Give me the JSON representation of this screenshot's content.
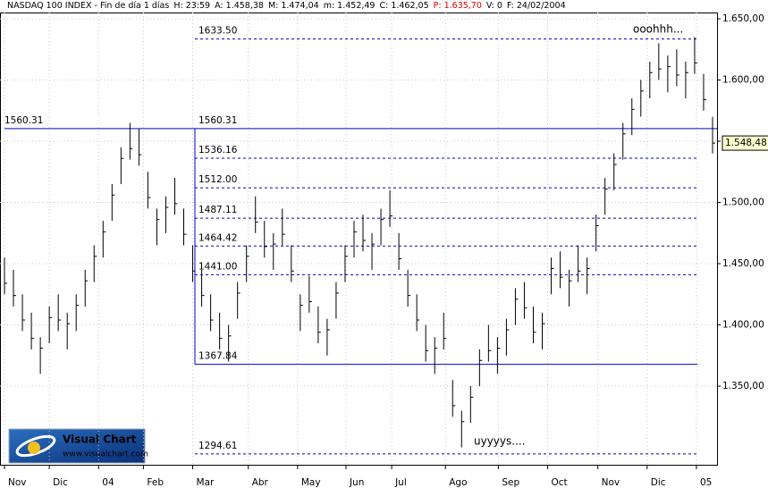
{
  "header": [
    "NASDAQ 100 INDEX - Fin de día 1 días",
    "H: 23:59",
    "A: 1.458,38",
    "M: 1.474,04",
    "m: 1.452,49",
    "C: 1.462,05",
    "P: 1.635,70",
    "V: 0",
    "F: 24/02/2004"
  ],
  "chart_data": {
    "type": "ohlc",
    "color": "#000000",
    "grid": true,
    "xlim": [
      0,
      80
    ],
    "ylim": [
      1285.8,
      1655.1
    ],
    "yticks": [
      {
        "value": 1350,
        "label": "1.350,00"
      },
      {
        "value": 1400,
        "label": "1.400,00"
      },
      {
        "value": 1450,
        "label": "1.450,00"
      },
      {
        "value": 1500,
        "label": "1.500,00"
      },
      {
        "value": 1550,
        "label": "1.550,00"
      },
      {
        "value": 1600,
        "label": "1.600,00"
      },
      {
        "value": 1650,
        "label": "1.650,00"
      }
    ],
    "xticks": [
      {
        "value": 0.5,
        "label": "Nov"
      },
      {
        "value": 5.5,
        "label": "Dic"
      },
      {
        "value": 11,
        "label": "04"
      },
      {
        "value": 16,
        "label": "Feb"
      },
      {
        "value": 21.5,
        "label": "Mar"
      },
      {
        "value": 27.7,
        "label": "Abr"
      },
      {
        "value": 33.2,
        "label": "May"
      },
      {
        "value": 38.6,
        "label": "Jun"
      },
      {
        "value": 43.7,
        "label": "Jul"
      },
      {
        "value": 49.7,
        "label": "Ago"
      },
      {
        "value": 55.6,
        "label": "Sep"
      },
      {
        "value": 61.1,
        "label": "Oct"
      },
      {
        "value": 66.7,
        "label": "Nov"
      },
      {
        "value": 72.2,
        "label": "Dic"
      },
      {
        "value": 77.7,
        "label": "05"
      }
    ],
    "high": [
      1455,
      1445,
      1425,
      1410,
      1390,
      1415,
      1425,
      1410,
      1425,
      1445,
      1465,
      1485,
      1515,
      1545,
      1565,
      1560,
      1525,
      1495,
      1505,
      1520,
      1495,
      1465,
      1445,
      1425,
      1410,
      1400,
      1435,
      1465,
      1505,
      1485,
      1475,
      1495,
      1465,
      1425,
      1440,
      1415,
      1405,
      1435,
      1465,
      1485,
      1490,
      1475,
      1495,
      1510,
      1475,
      1445,
      1425,
      1400,
      1390,
      1410,
      1355,
      1330,
      1350,
      1380,
      1400,
      1390,
      1405,
      1430,
      1435,
      1415,
      1410,
      1455,
      1460,
      1445,
      1465,
      1455,
      1490,
      1520,
      1540,
      1565,
      1585,
      1600,
      1615,
      1630,
      1620,
      1625,
      1615,
      1635,
      1605,
      1570
    ],
    "low": [
      1425,
      1415,
      1395,
      1380,
      1360,
      1385,
      1395,
      1380,
      1395,
      1415,
      1435,
      1455,
      1485,
      1515,
      1535,
      1530,
      1495,
      1465,
      1475,
      1490,
      1465,
      1435,
      1415,
      1395,
      1380,
      1370,
      1405,
      1435,
      1475,
      1455,
      1445,
      1465,
      1435,
      1395,
      1410,
      1385,
      1375,
      1405,
      1435,
      1455,
      1460,
      1445,
      1465,
      1480,
      1445,
      1415,
      1395,
      1370,
      1360,
      1380,
      1325,
      1300,
      1320,
      1350,
      1370,
      1360,
      1375,
      1400,
      1405,
      1385,
      1380,
      1425,
      1430,
      1415,
      1435,
      1425,
      1460,
      1490,
      1510,
      1535,
      1555,
      1570,
      1585,
      1600,
      1590,
      1595,
      1585,
      1605,
      1575,
      1540
    ],
    "close": [
      1434,
      1424,
      1404,
      1389,
      1381,
      1406,
      1404,
      1401,
      1416,
      1436,
      1456,
      1476,
      1506,
      1536,
      1544,
      1539,
      1504,
      1486,
      1496,
      1499,
      1474,
      1444,
      1424,
      1404,
      1389,
      1391,
      1426,
      1456,
      1484,
      1464,
      1466,
      1474,
      1444,
      1416,
      1419,
      1394,
      1396,
      1426,
      1456,
      1476,
      1469,
      1466,
      1486,
      1489,
      1454,
      1424,
      1404,
      1379,
      1381,
      1389,
      1334,
      1321,
      1341,
      1371,
      1379,
      1381,
      1396,
      1421,
      1414,
      1394,
      1401,
      1446,
      1439,
      1436,
      1444,
      1446,
      1481,
      1511,
      1531,
      1556,
      1576,
      1591,
      1606,
      1609,
      1611,
      1604,
      1606,
      1614,
      1584,
      1548.48
    ],
    "last_value": {
      "value": 1548.48,
      "label": "1.548,48"
    },
    "reference_line": 1560.31,
    "levels": [
      {
        "value": 1633.5,
        "label": "1633.50",
        "style": "dashed"
      },
      {
        "value": 1536.16,
        "style": "dashed"
      },
      {
        "value": 1512,
        "label": "1512.00",
        "style": "dashed"
      },
      {
        "value": 1487.11,
        "style": "dashed"
      },
      {
        "value": 1464.42,
        "style": "dashed"
      },
      {
        "value": 1441,
        "label": "1441.00",
        "style": "dashed"
      },
      {
        "value": 1367.84,
        "style": "solid"
      },
      {
        "value": 1294.61,
        "style": "dashed"
      }
    ],
    "annotations": [
      {
        "text": "ooohhh...",
        "color": "#228b22"
      },
      {
        "text": "uyyyys....",
        "color": "#228b22"
      }
    ],
    "logo": {
      "title": "Visual Chart",
      "url": "www.visualchart.com"
    }
  }
}
